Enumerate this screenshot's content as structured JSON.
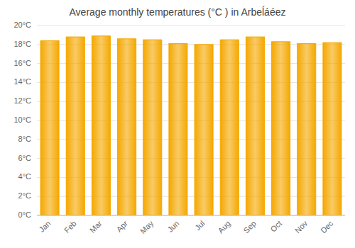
{
  "chart_data": {
    "type": "bar",
    "title": "Average monthly temperatures (°C ) in Arbeĺáéez",
    "categories": [
      "Jan",
      "Feb",
      "Mar",
      "Apr",
      "May",
      "Jun",
      "Jul",
      "Aug",
      "Sep",
      "Oct",
      "Nov",
      "Dec"
    ],
    "values": [
      18.4,
      18.8,
      18.9,
      18.6,
      18.5,
      18.1,
      18.0,
      18.5,
      18.8,
      18.3,
      18.1,
      18.2
    ],
    "color": "#F5A800",
    "ylim": [
      0,
      20
    ],
    "yticks": [
      {
        "value": 0,
        "label": "0°C"
      },
      {
        "value": 2,
        "label": "2°C"
      },
      {
        "value": 4,
        "label": "4°C"
      },
      {
        "value": 6,
        "label": "6°C"
      },
      {
        "value": 8,
        "label": "8°C"
      },
      {
        "value": 10,
        "label": "10°C"
      },
      {
        "value": 12,
        "label": "12°C"
      },
      {
        "value": 14,
        "label": "14°C"
      },
      {
        "value": 16,
        "label": "16°C"
      },
      {
        "value": 18,
        "label": "18°C"
      },
      {
        "value": 20,
        "label": "20°C"
      }
    ],
    "grid": true
  }
}
